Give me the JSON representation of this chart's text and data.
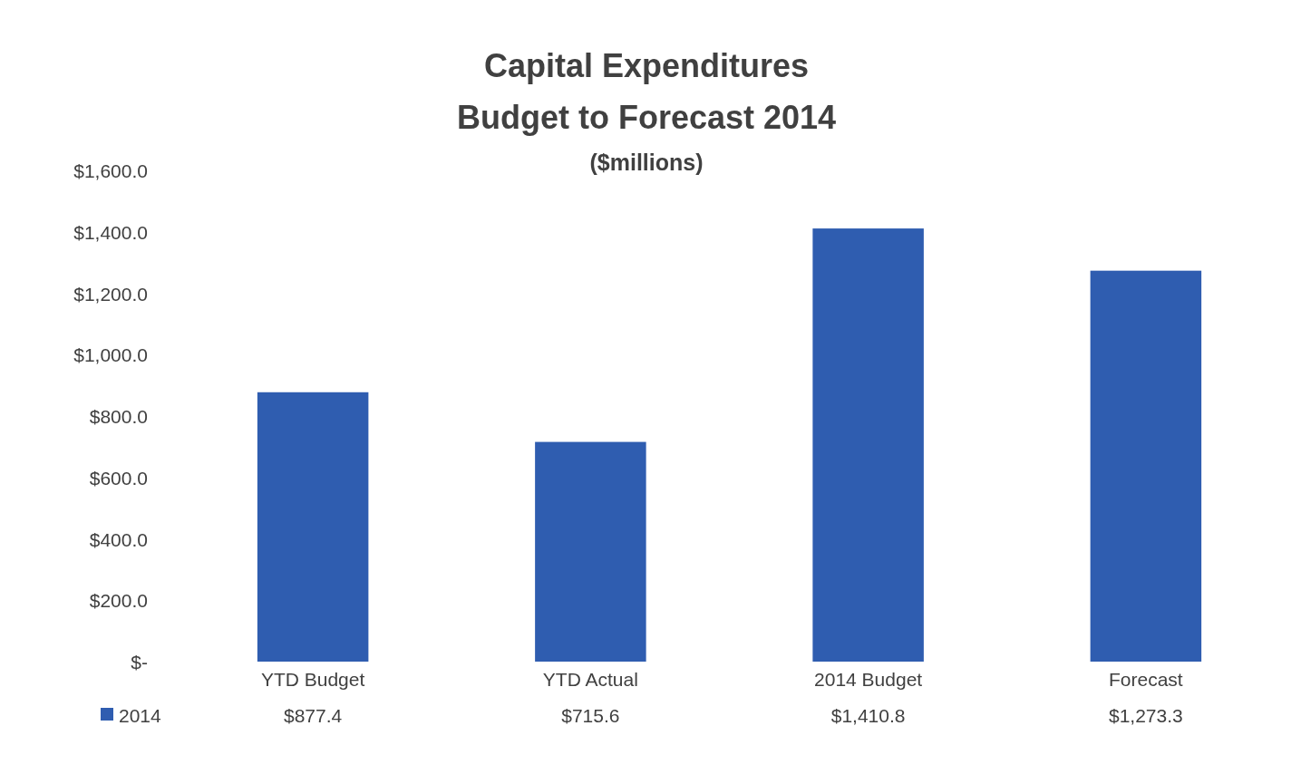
{
  "chart_data": {
    "type": "bar",
    "title": "Capital Expenditures\nBudget to Forecast 2014",
    "subtitle": "($millions)",
    "categories": [
      "YTD Budget",
      "YTD Actual",
      "2014 Budget",
      "Forecast"
    ],
    "series": [
      {
        "name": "2014",
        "color": "#2f5db0",
        "values": [
          877.4,
          715.6,
          1410.8,
          1273.3
        ],
        "value_labels": [
          "$877.4",
          "$715.6",
          "$1,410.8",
          "$1,273.3"
        ]
      }
    ],
    "ylim": [
      0,
      1600
    ],
    "yticks": [
      {
        "value": 0,
        "label": "$-"
      },
      {
        "value": 200,
        "label": "$200.0"
      },
      {
        "value": 400,
        "label": "$400.0"
      },
      {
        "value": 600,
        "label": "$600.0"
      },
      {
        "value": 800,
        "label": "$800.0"
      },
      {
        "value": 1000,
        "label": "$1,000.0"
      },
      {
        "value": 1200,
        "label": "$1,200.0"
      },
      {
        "value": 1400,
        "label": "$1,400.0"
      },
      {
        "value": 1600,
        "label": "$1,600.0"
      }
    ],
    "legend": "bottom left"
  }
}
